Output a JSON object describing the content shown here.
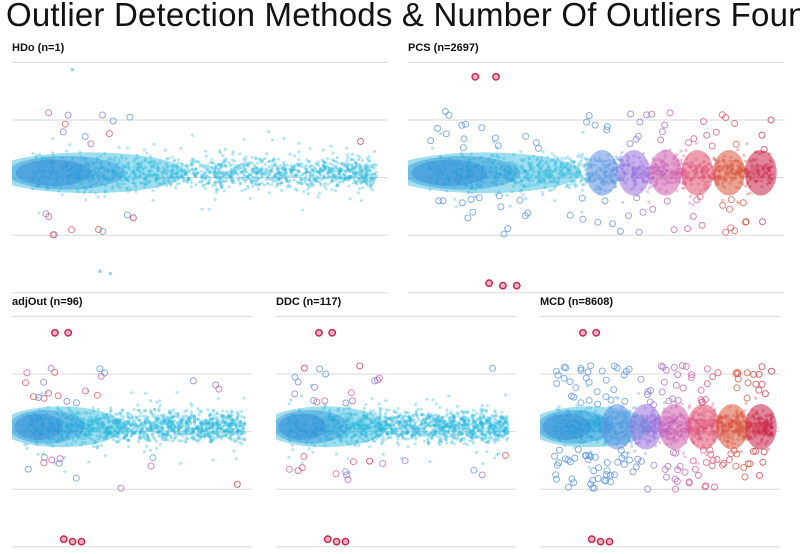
{
  "title": "Outlier Detection Methods & Number Of Outliers Found",
  "chart_data": [
    {
      "type": "scatter",
      "method": "HDo",
      "title": "HDo (n=1)",
      "n_outliers": 1,
      "outlier_extent": 0.0,
      "outlier_density": 0.0
    },
    {
      "type": "scatter",
      "method": "PCS",
      "title": "PCS (n=2697)",
      "n_outliers": 2697,
      "outlier_extent": 0.55,
      "outlier_density": 0.16
    },
    {
      "type": "scatter",
      "method": "adjOut",
      "title": "adjOut (n=96)",
      "n_outliers": 96,
      "outlier_extent": 0.0,
      "outlier_density": 0.025
    },
    {
      "type": "scatter",
      "method": "DDC",
      "title": "DDC (n=117)",
      "n_outliers": 117,
      "outlier_extent": 0.0,
      "outlier_density": 0.03
    },
    {
      "type": "scatter",
      "method": "MCD",
      "title": "MCD (n=8608)",
      "n_outliers": 8608,
      "outlier_extent": 0.78,
      "outlier_density": 0.35
    }
  ],
  "colors": {
    "inlier": "#29b6dc",
    "core_dark": "#3c52cf",
    "core_mid": "#2f7ad6",
    "gradient": [
      "#29b6dc",
      "#5c8fe0",
      "#9b6fdc",
      "#d05dab",
      "#e0506d",
      "#d8583a",
      "#c8204a"
    ],
    "gridline": "#d9d9d9"
  }
}
